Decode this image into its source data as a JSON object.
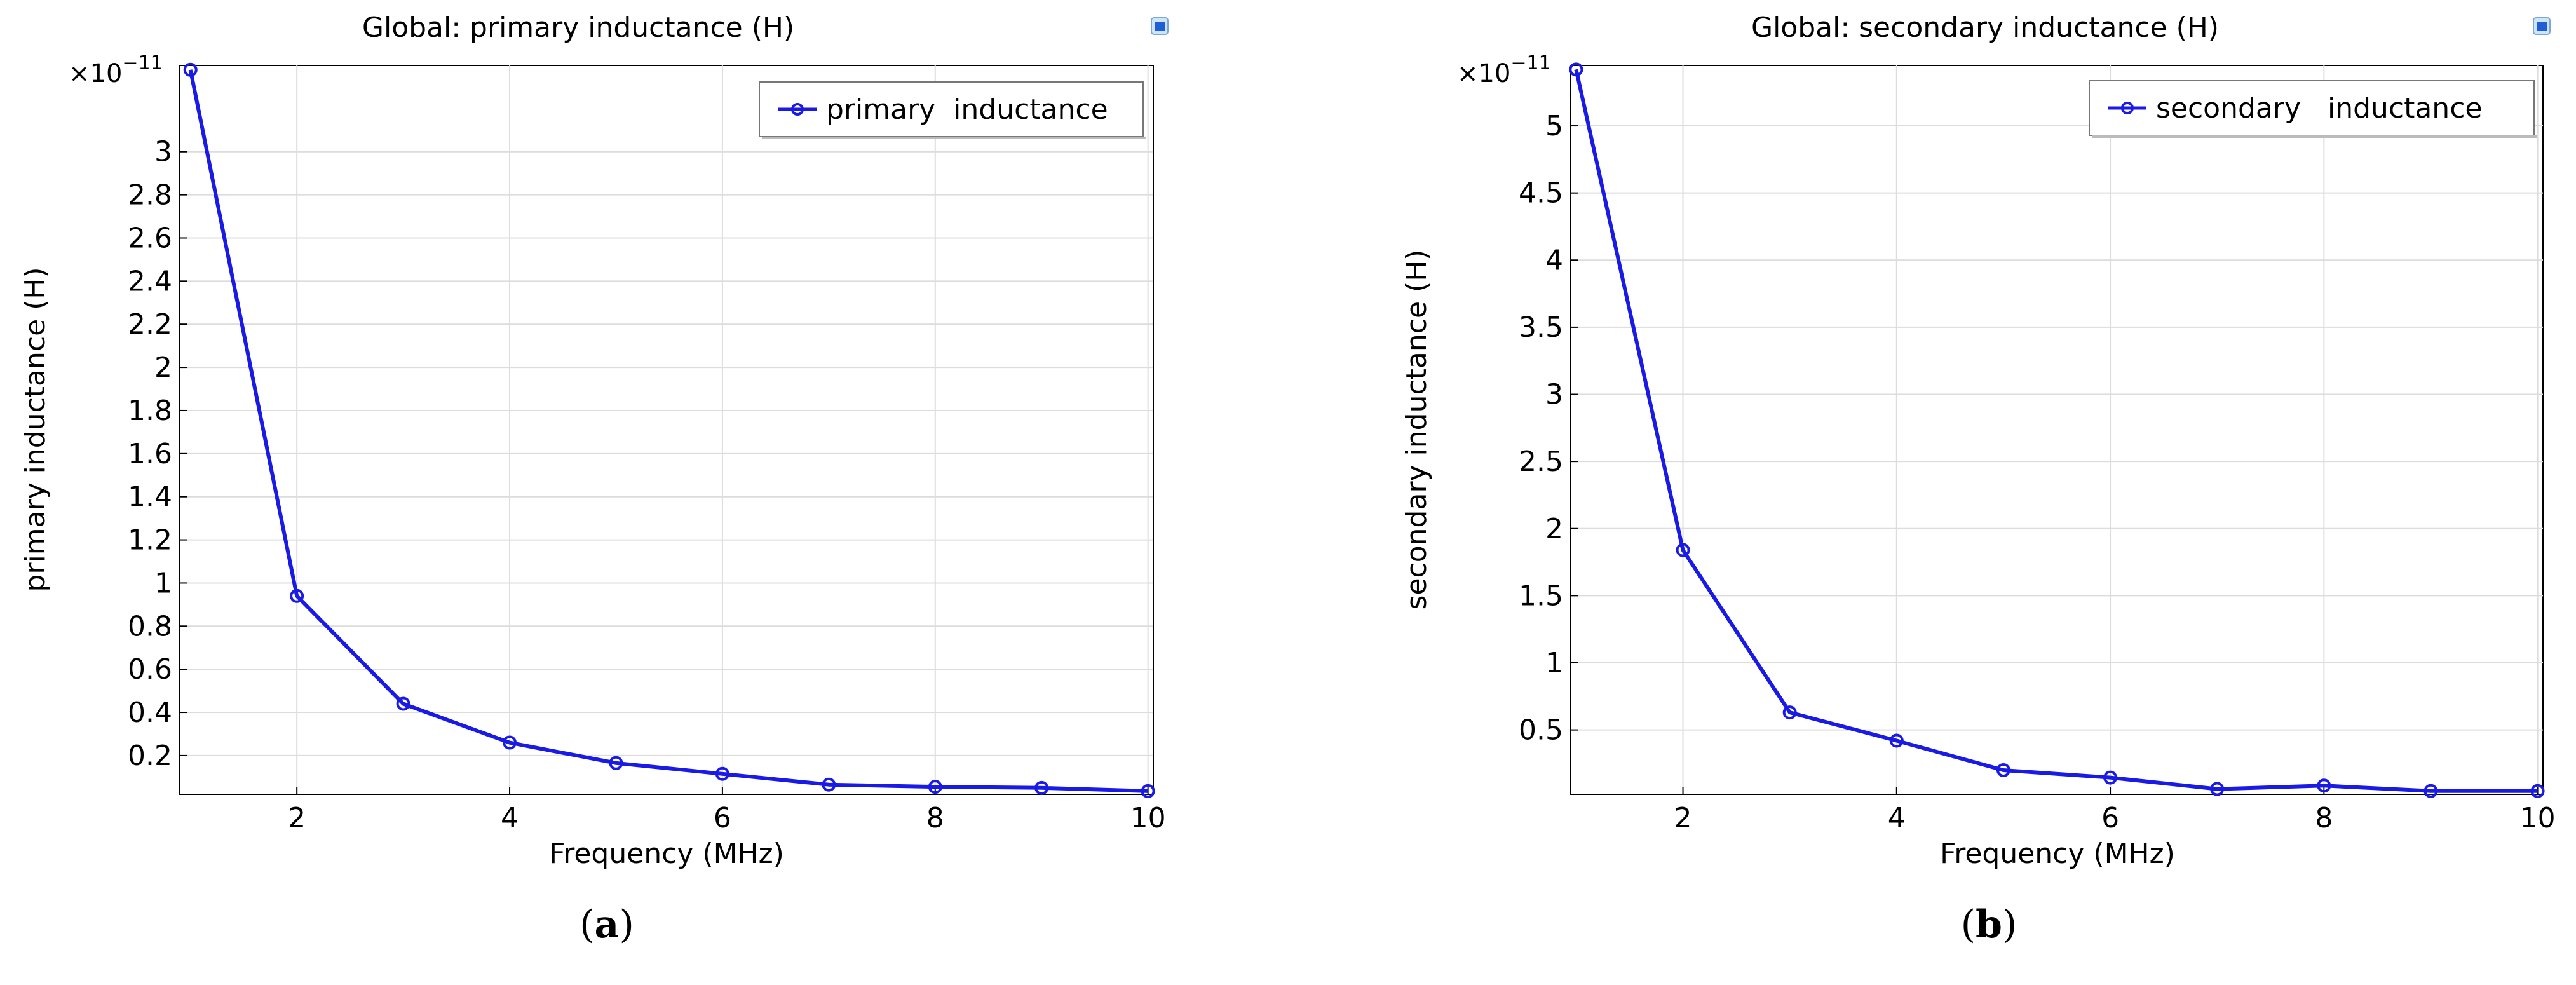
{
  "figure": {
    "icon_color": "#1f5fd6",
    "line_color": "#1a1ae6"
  },
  "chart_data": [
    {
      "type": "line",
      "panel_label": "a",
      "title": "Global: primary  inductance (H)",
      "xlabel": "Frequency (MHz)",
      "ylabel": "primary  inductance (H)",
      "y_exponent_label": "×10",
      "y_exponent_power": "−11",
      "xlim": [
        0.9,
        10.05
      ],
      "ylim": [
        0.02,
        3.4
      ],
      "xticks": [
        2,
        4,
        6,
        8,
        10
      ],
      "yticks": [
        0.2,
        0.4,
        0.6,
        0.8,
        1,
        1.2,
        1.4,
        1.6,
        1.8,
        2,
        2.2,
        2.4,
        2.6,
        2.8,
        3
      ],
      "grid": true,
      "legend_position": "top-right",
      "series": [
        {
          "name": "primary  inductance",
          "x": [
            1,
            2,
            3,
            4,
            5,
            6,
            7,
            8,
            9,
            10
          ],
          "y": [
            3.38,
            0.94,
            0.44,
            0.26,
            0.165,
            0.115,
            0.065,
            0.055,
            0.05,
            0.035
          ]
        }
      ]
    },
    {
      "type": "line",
      "panel_label": "b",
      "title": "Global: secondary inductance (H)",
      "xlabel": "Frequency (MHz)",
      "ylabel": "secondary inductance (H)",
      "y_exponent_label": "×10",
      "y_exponent_power": "−11",
      "xlim": [
        0.95,
        10.05
      ],
      "ylim": [
        0.02,
        5.45
      ],
      "xticks": [
        2,
        4,
        6,
        8,
        10
      ],
      "yticks": [
        0.5,
        1,
        1.5,
        2,
        2.5,
        3,
        3.5,
        4,
        4.5,
        5
      ],
      "grid": true,
      "legend_position": "top-right",
      "series": [
        {
          "name": "secondary   inductance",
          "x": [
            1,
            2,
            3,
            4,
            5,
            6,
            7,
            8,
            9,
            10
          ],
          "y": [
            5.42,
            1.84,
            0.63,
            0.42,
            0.2,
            0.145,
            0.06,
            0.085,
            0.045,
            0.045
          ]
        }
      ]
    }
  ]
}
